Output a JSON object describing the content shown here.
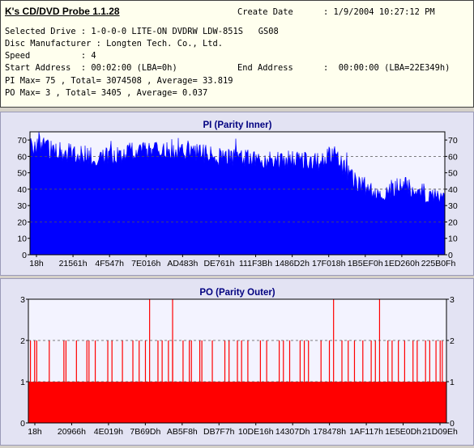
{
  "header": {
    "app_title": "K's CD/DVD Probe 1.1.28",
    "create_date_label": "Create Date",
    "create_date_value": ": 1/9/2004 10:27:12 PM",
    "selected_drive": "Selected Drive : 1-0-0-0 LITE-ON DVDRW LDW-851S   GS08",
    "disc_manufacturer": "Disc Manufacturer : Longten Tech. Co., Ltd.",
    "speed": "Speed          : 4",
    "start_address": "Start Address  : 00:02:00 (LBA=0h)",
    "end_address_label": "End Address",
    "end_address_value": ":  00:00:00 (LBA=22E349h)",
    "pi_stats": "PI Max= 75 , Total= 3074508 , Average= 33.819",
    "po_stats": "PO Max= 3 , Total= 3405 , Average= 0.037"
  },
  "chart_data": [
    {
      "type": "area",
      "title": "PI (Parity Inner)",
      "ylim": [
        0,
        75
      ],
      "y_ticks": [
        0,
        10,
        20,
        30,
        40,
        50,
        60,
        70
      ],
      "x_tick_labels": [
        "18h",
        "21561h",
        "4F547h",
        "7E016h",
        "AD483h",
        "DE761h",
        "111F3Bh",
        "1486D2h",
        "17F018h",
        "1B5EF0h",
        "1ED260h",
        "225B0Fh"
      ],
      "grid_y": [
        20,
        40,
        60
      ],
      "color": "#0000ff",
      "series": [
        {
          "profile_x": [
            0,
            0.03,
            0.06,
            0.1,
            0.15,
            0.2,
            0.25,
            0.3,
            0.35,
            0.4,
            0.45,
            0.5,
            0.55,
            0.6,
            0.65,
            0.7,
            0.72,
            0.74,
            0.76,
            0.78,
            0.8,
            0.83,
            0.86,
            0.9,
            0.93,
            0.96,
            1.0
          ],
          "profile_y": [
            66,
            67,
            63,
            62,
            60,
            61,
            63,
            63,
            63,
            62,
            60,
            59,
            58,
            58,
            57,
            57,
            62,
            60,
            52,
            45,
            42,
            40,
            38,
            44,
            39,
            37,
            34
          ]
        }
      ]
    },
    {
      "type": "bar",
      "title": "PO (Parity Outer)",
      "ylim": [
        0,
        3
      ],
      "y_ticks": [
        0,
        1,
        2,
        3
      ],
      "x_tick_labels": [
        "18h",
        "20966h",
        "4E019h",
        "7B69Dh",
        "AB5F8h",
        "DB7F7h",
        "10DE16h",
        "14307Dh",
        "178478h",
        "1AF117h",
        "1E5E0Dh",
        "21D09Eh"
      ],
      "grid_y": [
        1,
        2
      ],
      "color": "#ff0000",
      "series": [
        {
          "baseline_value": 1,
          "spikes_3_at": [
            0.29,
            0.345,
            0.73,
            0.84
          ],
          "spikes_2_at": [
            0.005,
            0.015,
            0.02,
            0.05,
            0.085,
            0.09,
            0.115,
            0.14,
            0.145,
            0.16,
            0.19,
            0.2,
            0.225,
            0.25,
            0.265,
            0.28,
            0.31,
            0.32,
            0.335,
            0.345,
            0.37,
            0.385,
            0.39,
            0.41,
            0.415,
            0.44,
            0.47,
            0.48,
            0.5,
            0.51,
            0.525,
            0.555,
            0.57,
            0.6,
            0.61,
            0.625,
            0.65,
            0.66,
            0.67,
            0.7,
            0.72,
            0.75,
            0.765,
            0.78,
            0.8,
            0.82,
            0.83,
            0.86,
            0.87,
            0.885,
            0.9,
            0.92,
            0.93,
            0.95,
            0.96,
            0.975,
            0.985,
            0.99
          ]
        }
      ]
    }
  ]
}
